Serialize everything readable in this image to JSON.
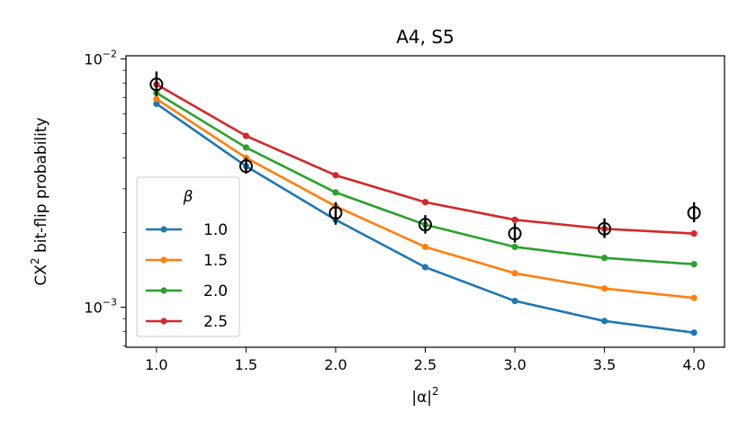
{
  "chart_data": {
    "type": "line",
    "title": "A4, S5",
    "xlabel_prefix": "|α|",
    "xlabel_sup": "2",
    "ylabel_prefix": "CX",
    "ylabel_sup": "2",
    "ylabel_suffix": " bit-flip probability",
    "yscale": "log",
    "xlim": [
      0.83,
      4.17
    ],
    "ylim": [
      0.00069,
      0.0103
    ],
    "x": [
      1.0,
      1.5,
      2.0,
      2.5,
      3.0,
      3.5,
      4.0
    ],
    "x_tick_labels": [
      "1.0",
      "1.5",
      "2.0",
      "2.5",
      "3.0",
      "3.5",
      "4.0"
    ],
    "y_ticks": [
      {
        "base": "10",
        "exp": "−2",
        "value": 0.01
      },
      {
        "base": "10",
        "exp": "−3",
        "value": 0.001
      }
    ],
    "legend": {
      "title": "β",
      "placement": "lower-left"
    },
    "series": [
      {
        "name": "1.0",
        "color": "#1f77b4",
        "values": [
          0.0066,
          0.0037,
          0.00225,
          0.00145,
          0.00106,
          0.00088,
          0.00079
        ]
      },
      {
        "name": "1.5",
        "color": "#ff7f0e",
        "values": [
          0.0069,
          0.004,
          0.00255,
          0.00175,
          0.00137,
          0.00119,
          0.00109
        ]
      },
      {
        "name": "2.0",
        "color": "#2ca02c",
        "values": [
          0.0073,
          0.0044,
          0.0029,
          0.00215,
          0.00175,
          0.00158,
          0.00149
        ]
      },
      {
        "name": "2.5",
        "color": "#d62728",
        "values": [
          0.0079,
          0.0049,
          0.0034,
          0.00265,
          0.00225,
          0.00207,
          0.00198
        ]
      }
    ],
    "measured": {
      "values": [
        0.0079,
        0.0037,
        0.0024,
        0.00215,
        0.00198,
        0.00207,
        0.0024
      ],
      "err_low": [
        0.0071,
        0.00345,
        0.00215,
        0.00198,
        0.00182,
        0.0019,
        0.0022
      ],
      "err_high": [
        0.0089,
        0.004,
        0.00265,
        0.00235,
        0.00218,
        0.00228,
        0.00265
      ]
    }
  }
}
